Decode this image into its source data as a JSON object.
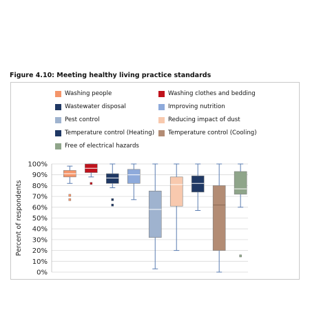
{
  "figure_title": "Figure 4.10: Meeting healthy living practice standards",
  "chart_data": {
    "type": "box",
    "title": "Figure 4.10: Meeting healthy living practice standards",
    "ylabel": "Percent of respondents",
    "xlabel": "",
    "ylim": [
      0,
      100
    ],
    "yticks": [
      "0%",
      "10%",
      "20%",
      "30%",
      "40%",
      "50%",
      "60%",
      "70%",
      "80%",
      "90%",
      "100%"
    ],
    "grid": true,
    "legend_position": "top",
    "series": [
      {
        "name": "Washing people",
        "color": "#f4956a",
        "median_color": "#ffffff",
        "whisker_low": 82,
        "q1": 88,
        "median": 91,
        "q3": 94,
        "whisker_high": 98,
        "outliers": [
          71,
          67
        ]
      },
      {
        "name": "Washing clothes and bedding",
        "color": "#c0121c",
        "median_color": "#ffffff",
        "whisker_low": 88,
        "q1": 92,
        "median": 96,
        "q3": 100,
        "whisker_high": 100,
        "outliers": [
          82
        ]
      },
      {
        "name": "Wastewater disposal",
        "color": "#1f3864",
        "median_color": "#ffffff",
        "whisker_low": 78,
        "q1": 82,
        "median": 87,
        "q3": 91,
        "whisker_high": 100,
        "outliers": [
          67,
          62
        ]
      },
      {
        "name": "Improving nutrition",
        "color": "#8eaadb",
        "median_color": "#ffffff",
        "whisker_low": 67,
        "q1": 82,
        "median": 90,
        "q3": 95,
        "whisker_high": 100,
        "outliers": []
      },
      {
        "name": "Pest control",
        "color": "#9fb3cf",
        "median_color": "#ffffff",
        "whisker_low": 3,
        "q1": 32,
        "median": 58,
        "q3": 75,
        "whisker_high": 100,
        "outliers": []
      },
      {
        "name": "Reducing impact of dust",
        "color": "#f8c9ae",
        "median_color": "#ffffff",
        "whisker_low": 20,
        "q1": 61,
        "median": 81,
        "q3": 88,
        "whisker_high": 100,
        "outliers": []
      },
      {
        "name": "Temperature control (Heating)",
        "color": "#1f3864",
        "median_color": "#ffffff",
        "whisker_low": 57,
        "q1": 74,
        "median": 82,
        "q3": 89,
        "whisker_high": 100,
        "outliers": []
      },
      {
        "name": "Temperature control (Cooling)",
        "color": "#b38c74",
        "median_color": "#8a6a55",
        "whisker_low": 0,
        "q1": 20,
        "median": 62,
        "q3": 80,
        "whisker_high": 100,
        "outliers": []
      },
      {
        "name": "Free of electrical hazards",
        "color": "#8fa58a",
        "median_color": "#ffffff",
        "whisker_low": 60,
        "q1": 72,
        "median": 77,
        "q3": 93,
        "whisker_high": 100,
        "outliers": [
          15
        ]
      }
    ]
  }
}
